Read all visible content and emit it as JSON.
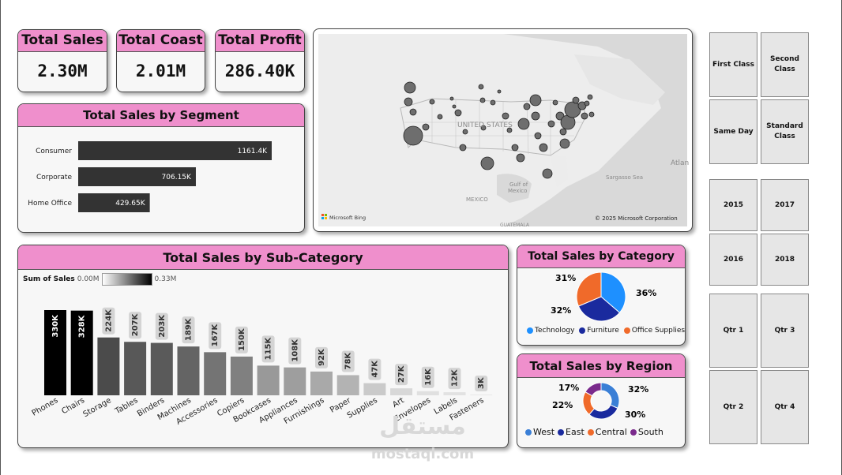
{
  "kpis": [
    {
      "label": "Total Sales",
      "value": "2.30M"
    },
    {
      "label": "Total Coast",
      "value": "2.01M"
    },
    {
      "label": "Total Profit",
      "value": "286.40K"
    }
  ],
  "segment": {
    "title": "Total Sales by Segment",
    "rows": [
      {
        "label": "Consumer",
        "value": 1161.4,
        "text": "1161.4K"
      },
      {
        "label": "Corporate",
        "value": 706.15,
        "text": "706.15K"
      },
      {
        "label": "Home Office",
        "value": 429.65,
        "text": "429.65K"
      }
    ]
  },
  "map": {
    "country_label": "UNITED STATES",
    "mexico_label": "MEXICO",
    "gulf_label_1": "Gulf of",
    "gulf_label_2": "Mexico",
    "sargasso_label": "Sargasso Sea",
    "atlantic_label": "Atlan",
    "guatemala_label": "GUATEMALA",
    "bing_label": "Microsoft Bing",
    "copyright": "© 2025 Microsoft Corporation"
  },
  "subcategory": {
    "title": "Total Sales by Sub-Category",
    "legend_title": "Sum of Sales",
    "legend_min": "0.00M",
    "legend_max": "0.33M"
  },
  "category": {
    "title": "Total Sales by Category",
    "labels": {
      "tech": "36%",
      "furn": "32%",
      "office": "31%"
    },
    "legend": [
      "Technology",
      "Furniture",
      "Office Supplies"
    ]
  },
  "region": {
    "title": "Total Sales by Region",
    "labels": {
      "west": "32%",
      "east": "30%",
      "central": "22%",
      "south": "17%"
    },
    "legend": [
      "West",
      "East",
      "Central",
      "South"
    ]
  },
  "slicers": {
    "ship_mode": [
      "First Class",
      "Second Class",
      "Same Day",
      "Standard Class"
    ],
    "years": [
      "2015",
      "2017",
      "2016",
      "2018"
    ],
    "quarters": [
      "Qtr 1",
      "Qtr 3",
      "Qtr 2",
      "Qtr 4"
    ]
  },
  "watermark": {
    "arabic": "مستقل",
    "latin": "mostaql.com"
  },
  "colors": {
    "header_pink": "#ef8fcc",
    "bar_dark": "#333333",
    "technology": "#1e90ff",
    "furniture": "#1a2a9e",
    "office_supplies": "#f06a2a",
    "west": "#3a7fd6",
    "east": "#1a2a9e",
    "central": "#f06a2a",
    "south": "#7a2a8c"
  },
  "chart_data": [
    {
      "type": "bar",
      "orientation": "horizontal",
      "title": "Total Sales by Segment",
      "categories": [
        "Consumer",
        "Corporate",
        "Home Office"
      ],
      "values": [
        1161.4,
        706.15,
        429.65
      ],
      "value_labels": [
        "1161.4K",
        "706.15K",
        "429.65K"
      ],
      "unit": "K"
    },
    {
      "type": "bar",
      "title": "Total Sales by Sub-Category",
      "categories": [
        "Phones",
        "Chairs",
        "Storage",
        "Tables",
        "Binders",
        "Machines",
        "Accessories",
        "Copiers",
        "Bookcases",
        "Appliances",
        "Furnishings",
        "Paper",
        "Supplies",
        "Art",
        "Envelopes",
        "Labels",
        "Fasteners"
      ],
      "values": [
        330,
        328,
        224,
        207,
        203,
        189,
        167,
        150,
        115,
        108,
        92,
        78,
        47,
        27,
        16,
        12,
        3
      ],
      "value_labels": [
        "330K",
        "328K",
        "224K",
        "207K",
        "203K",
        "189K",
        "167K",
        "150K",
        "115K",
        "108K",
        "92K",
        "78K",
        "47K",
        "27K",
        "16K",
        "12K",
        "3K"
      ],
      "unit": "K"
    },
    {
      "type": "pie",
      "title": "Total Sales by Category",
      "categories": [
        "Technology",
        "Furniture",
        "Office Supplies"
      ],
      "values": [
        36,
        32,
        31
      ],
      "value_labels": [
        "36%",
        "32%",
        "31%"
      ]
    },
    {
      "type": "pie",
      "donut": true,
      "title": "Total Sales by Region",
      "categories": [
        "West",
        "East",
        "Central",
        "South"
      ],
      "values": [
        32,
        30,
        22,
        17
      ],
      "value_labels": [
        "32%",
        "30%",
        "22%",
        "17%"
      ]
    }
  ]
}
